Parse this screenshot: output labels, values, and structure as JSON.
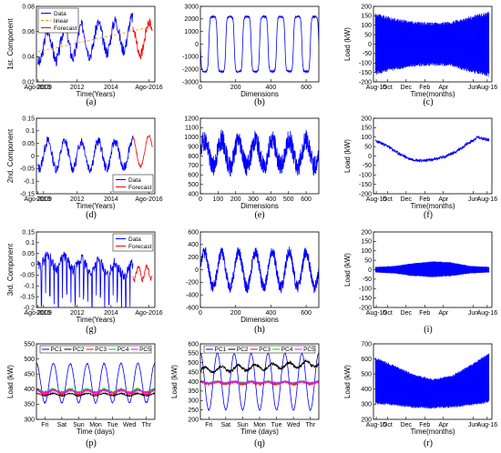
{
  "chart_data": [
    {
      "id": "a",
      "caption": "(a)",
      "type": "line",
      "xlabel": "Time(Years)",
      "ylabel": "1st. Component",
      "xlim": [
        2009.58,
        2016.6
      ],
      "ylim": [
        0.02,
        0.08
      ],
      "xticks": [
        {
          "v": 2009.67,
          "t": "Ago-2009"
        },
        {
          "v": 2010,
          "t": "2010"
        },
        {
          "v": 2012,
          "t": "2012"
        },
        {
          "v": 2014,
          "t": "2014"
        },
        {
          "v": 2016.25,
          "t": "Ago-2016"
        }
      ],
      "yticks": [
        0.02,
        0.04,
        0.06,
        0.08
      ],
      "legend": {
        "position": "top-left",
        "entries": [
          "Data",
          "linear",
          "Forecast"
        ]
      },
      "series": [
        {
          "name": "Data",
          "color": "#0000ff",
          "gen": "seasonal",
          "x0": 2009.67,
          "x1": 2015.3,
          "mid": 0.047,
          "trend": 0.012,
          "amp": 0.012,
          "period": 1,
          "noise": 0.005,
          "n": 260,
          "seed": 3
        },
        {
          "name": "linear",
          "color": "#ff8c00",
          "dash": "3,2",
          "x": [
            2009.67,
            2016.5
          ],
          "values": [
            0.044,
            0.064
          ]
        },
        {
          "name": "Forecast",
          "color": "#ff0000",
          "gen": "seasonal",
          "x0": 2015.3,
          "x1": 2016.45,
          "mid": 0.052,
          "trend": 0.004,
          "amp": 0.012,
          "period": 1,
          "noise": 0.004,
          "n": 50,
          "seed": 7
        }
      ]
    },
    {
      "id": "b",
      "caption": "(b)",
      "type": "line",
      "xlabel": "Dimensions",
      "ylabel": "",
      "xlim": [
        0,
        672
      ],
      "ylim": [
        -3000,
        3000
      ],
      "xticks": [
        {
          "v": 0,
          "t": "0"
        },
        {
          "v": 200,
          "t": "200"
        },
        {
          "v": 400,
          "t": "400"
        },
        {
          "v": 600,
          "t": "600"
        }
      ],
      "yticks": [
        -3000,
        -2000,
        -1000,
        0,
        1000,
        2000,
        3000
      ],
      "series": [
        {
          "color": "#0000ff",
          "gen": "squareish",
          "x0": 0,
          "x1": 672,
          "amp": 2200,
          "period": 96,
          "phase": 48,
          "noise": 80,
          "n": 672,
          "seed": 11
        }
      ]
    },
    {
      "id": "c",
      "caption": "(c)",
      "type": "line",
      "xlabel": "Time(months)",
      "ylabel": "Load (kW)",
      "xlim": [
        0,
        12.7
      ],
      "ylim": [
        -200,
        200
      ],
      "xticks": [
        {
          "v": 0.3,
          "t": "Aug-15"
        },
        {
          "v": 1.5,
          "t": "Oct"
        },
        {
          "v": 3.5,
          "t": "Dec"
        },
        {
          "v": 5.5,
          "t": "Feb"
        },
        {
          "v": 7.5,
          "t": "Apr"
        },
        {
          "v": 10.7,
          "t": "Jun"
        },
        {
          "v": 12.2,
          "t": "Aug-16"
        }
      ],
      "yticks": [
        -200,
        -150,
        -100,
        -50,
        0,
        50,
        100,
        150,
        200
      ],
      "series": [
        {
          "color": "#0000ff",
          "gen": "envelope",
          "x0": 0.2,
          "x1": 12.4,
          "envTop": [
            165,
            140,
            120,
            115,
            120,
            150,
            175
          ],
          "envBot": [
            -165,
            -140,
            -120,
            -115,
            -120,
            -150,
            -175
          ],
          "n": 700,
          "seed": 5
        }
      ]
    },
    {
      "id": "d",
      "caption": "(d)",
      "type": "line",
      "xlabel": "Time(Years)",
      "ylabel": "2nd. Component",
      "xlim": [
        2009.58,
        2016.6
      ],
      "ylim": [
        -0.15,
        0.15
      ],
      "xticks": [
        {
          "v": 2009.67,
          "t": "Ago-2009"
        },
        {
          "v": 2010,
          "t": "2010"
        },
        {
          "v": 2012,
          "t": "2012"
        },
        {
          "v": 2014,
          "t": "2014"
        },
        {
          "v": 2016.25,
          "t": "Ago-2016"
        }
      ],
      "yticks": [
        -0.15,
        -0.1,
        -0.05,
        0,
        0.05,
        0.1,
        0.15
      ],
      "legend": {
        "position": "bottom-right",
        "entries": [
          "Data",
          "Forecast"
        ]
      },
      "series": [
        {
          "name": "Data",
          "color": "#0000ff",
          "gen": "seasonal",
          "x0": 2009.67,
          "x1": 2015.3,
          "mid": 0.005,
          "trend": 0,
          "amp": 0.055,
          "period": 1,
          "noise": 0.02,
          "n": 260,
          "seed": 13
        },
        {
          "name": "Forecast",
          "color": "#ff0000",
          "gen": "seasonal",
          "x0": 2015.3,
          "x1": 2016.45,
          "mid": 0.02,
          "trend": 0,
          "amp": 0.06,
          "period": 1,
          "noise": 0.006,
          "n": 50,
          "seed": 17
        }
      ]
    },
    {
      "id": "e",
      "caption": "(e)",
      "type": "line",
      "xlabel": "Dimensions",
      "ylabel": "",
      "xlim": [
        0,
        672
      ],
      "ylim": [
        400,
        1200
      ],
      "xticks": [
        {
          "v": 0,
          "t": "0"
        },
        {
          "v": 100,
          "t": "100"
        },
        {
          "v": 200,
          "t": "200"
        },
        {
          "v": 300,
          "t": "300"
        },
        {
          "v": 400,
          "t": "400"
        },
        {
          "v": 500,
          "t": "500"
        },
        {
          "v": 600,
          "t": "600"
        }
      ],
      "yticks": [
        400,
        500,
        600,
        700,
        800,
        900,
        1000,
        1100,
        1200
      ],
      "series": [
        {
          "color": "#0000ff",
          "gen": "noisy",
          "x0": 0,
          "x1": 672,
          "mid": 830,
          "amp": 140,
          "period": 96,
          "noise": 110,
          "n": 672,
          "seed": 19
        }
      ]
    },
    {
      "id": "f",
      "caption": "(f)",
      "type": "line",
      "xlabel": "Time(months)",
      "ylabel": "Load (kW)",
      "xlim": [
        0,
        12.7
      ],
      "ylim": [
        -200,
        200
      ],
      "xticks": [
        {
          "v": 0.3,
          "t": "Aug-15"
        },
        {
          "v": 1.5,
          "t": "Oct"
        },
        {
          "v": 3.5,
          "t": "Dec"
        },
        {
          "v": 5.5,
          "t": "Feb"
        },
        {
          "v": 7.5,
          "t": "Apr"
        },
        {
          "v": 10.7,
          "t": "Jun"
        },
        {
          "v": 12.2,
          "t": "Aug-16"
        }
      ],
      "yticks": [
        -200,
        -150,
        -100,
        -50,
        0,
        50,
        100,
        150,
        200
      ],
      "series": [
        {
          "color": "#0000ff",
          "gen": "ucurve",
          "x0": 0.2,
          "x1": 12.4,
          "values": [
            80,
            55,
            15,
            -15,
            -25,
            -20,
            -5,
            20,
            60,
            100,
            85
          ],
          "noise": 8,
          "n": 500,
          "seed": 23
        }
      ]
    },
    {
      "id": "g",
      "caption": "(g)",
      "type": "line",
      "xlabel": "Time(Years)",
      "ylabel": "3rd. Component",
      "xlim": [
        2009.58,
        2016.6
      ],
      "ylim": [
        -0.2,
        0.15
      ],
      "xticks": [
        {
          "v": 2009.67,
          "t": "Ago-2009"
        },
        {
          "v": 2010,
          "t": "2010"
        },
        {
          "v": 2012,
          "t": "2012"
        },
        {
          "v": 2014,
          "t": "2014"
        },
        {
          "v": 2016.25,
          "t": "Ago-2016"
        }
      ],
      "yticks": [
        -0.2,
        -0.15,
        -0.1,
        -0.05,
        0,
        0.05,
        0.1,
        0.15
      ],
      "legend": {
        "position": "top-right",
        "entries": [
          "Data",
          "Forecast"
        ]
      },
      "series": [
        {
          "name": "Data",
          "color": "#0000ff",
          "gen": "spiky",
          "x0": 2009.67,
          "x1": 2015.3,
          "mid": 0.02,
          "trend": -0.05,
          "amp": 0.03,
          "period": 1,
          "noise": 0.025,
          "n": 260,
          "seed": 29
        },
        {
          "name": "Forecast",
          "color": "#ff0000",
          "gen": "seasonal",
          "x0": 2015.3,
          "x1": 2016.45,
          "mid": -0.04,
          "trend": 0,
          "amp": 0.03,
          "period": 0.5,
          "noise": 0.012,
          "n": 50,
          "seed": 31
        }
      ]
    },
    {
      "id": "h",
      "caption": "(h)",
      "type": "line",
      "xlabel": "Dimensions",
      "ylabel": "",
      "xlim": [
        0,
        672
      ],
      "ylim": [
        -600,
        600
      ],
      "xticks": [
        {
          "v": 0,
          "t": "0"
        },
        {
          "v": 200,
          "t": "200"
        },
        {
          "v": 400,
          "t": "400"
        },
        {
          "v": 600,
          "t": "600"
        }
      ],
      "yticks": [
        -600,
        -400,
        -200,
        0,
        200,
        400,
        600
      ],
      "series": [
        {
          "color": "#0000ff",
          "gen": "noisy",
          "x0": 0,
          "x1": 672,
          "mid": 0,
          "amp": 280,
          "period": 96,
          "noise": 100,
          "n": 672,
          "seed": 37
        }
      ]
    },
    {
      "id": "i",
      "caption": "(i)",
      "type": "line",
      "xlabel": "",
      "ylabel": "Load (kW)",
      "xlim": [
        0,
        12.7
      ],
      "ylim": [
        -200,
        200
      ],
      "xticks": [
        {
          "v": 0.3,
          "t": "Aug-15"
        },
        {
          "v": 1.5,
          "t": "Oct"
        },
        {
          "v": 3.5,
          "t": "Dec"
        },
        {
          "v": 5.5,
          "t": "Feb"
        },
        {
          "v": 7.5,
          "t": "Apr"
        },
        {
          "v": 10.7,
          "t": "Jun"
        },
        {
          "v": 12.2,
          "t": "Aug-16"
        }
      ],
      "yticks": [
        -200,
        -150,
        -100,
        -50,
        0,
        50,
        100,
        150,
        200
      ],
      "series": [
        {
          "color": "#0000ff",
          "gen": "envelope",
          "x0": 0.2,
          "x1": 12.4,
          "envTop": [
            15,
            20,
            35,
            45,
            40,
            20,
            15
          ],
          "envBot": [
            -15,
            -20,
            -35,
            -40,
            -35,
            -20,
            -15
          ],
          "n": 700,
          "seed": 41
        }
      ]
    },
    {
      "id": "p",
      "caption": "(p)",
      "type": "line",
      "xlabel": "Time (days)",
      "ylabel": "Load (kW)",
      "xlim": [
        0,
        7
      ],
      "ylim": [
        300,
        550
      ],
      "xticks": [
        {
          "v": 0.5,
          "t": "Fri"
        },
        {
          "v": 1.5,
          "t": "Sat"
        },
        {
          "v": 2.5,
          "t": "Sun"
        },
        {
          "v": 3.5,
          "t": "Mon"
        },
        {
          "v": 4.5,
          "t": "Tue"
        },
        {
          "v": 5.5,
          "t": "Wed"
        },
        {
          "v": 6.5,
          "t": "Thr"
        }
      ],
      "yticks": [
        300,
        350,
        400,
        450,
        500,
        550
      ],
      "legend": {
        "position": "top",
        "entries": [
          "PC1",
          "PC2",
          "PC3",
          "PC4",
          "PC5"
        ]
      },
      "series": [
        {
          "name": "PC1",
          "color": "#0000ff",
          "gen": "daily",
          "x0": 0,
          "x1": 7,
          "mid": 420,
          "amp": 65,
          "period": 1,
          "noise": 2,
          "n": 400,
          "seed": 43
        },
        {
          "name": "PC2",
          "color": "#000000",
          "gen": "daily",
          "x0": 0,
          "x1": 7,
          "mid": 382,
          "amp": 4,
          "period": 1,
          "noise": 2,
          "n": 400,
          "seed": 47
        },
        {
          "name": "PC3",
          "color": "#ff0000",
          "gen": "daily",
          "x0": 0,
          "x1": 7,
          "mid": 390,
          "amp": 8,
          "period": 1,
          "noise": 3,
          "n": 400,
          "seed": 53
        },
        {
          "name": "PC4",
          "color": "#00cc00",
          "gen": "daily",
          "x0": 0,
          "x1": 7,
          "mid": 395,
          "amp": 5,
          "period": 1,
          "noise": 3,
          "n": 400,
          "seed": 59
        },
        {
          "name": "PC5",
          "color": "#ff00ff",
          "gen": "daily",
          "x0": 0,
          "x1": 7,
          "mid": 392,
          "amp": 4,
          "period": 1,
          "noise": 3,
          "n": 400,
          "seed": 61
        }
      ]
    },
    {
      "id": "q",
      "caption": "(q)",
      "type": "line",
      "xlabel": "Time (days)",
      "ylabel": "Load (kW)",
      "xlim": [
        0,
        7
      ],
      "ylim": [
        200,
        600
      ],
      "xticks": [
        {
          "v": 0.5,
          "t": "Fri"
        },
        {
          "v": 1.5,
          "t": "Sat"
        },
        {
          "v": 2.5,
          "t": "Sun"
        },
        {
          "v": 3.5,
          "t": "Mon"
        },
        {
          "v": 4.5,
          "t": "Tue"
        },
        {
          "v": 5.5,
          "t": "Wed"
        },
        {
          "v": 6.5,
          "t": "Thr"
        }
      ],
      "yticks": [
        200,
        250,
        300,
        350,
        400,
        450,
        500,
        550,
        600
      ],
      "legend": {
        "position": "top",
        "entries": [
          "PC1",
          "PC2",
          "PC3",
          "PC4",
          "PC5"
        ]
      },
      "series": [
        {
          "name": "PC1",
          "color": "#0000ff",
          "gen": "daily",
          "x0": 0,
          "x1": 7,
          "mid": 400,
          "amp": 150,
          "period": 1,
          "noise": 3,
          "n": 400,
          "seed": 67
        },
        {
          "name": "PC2",
          "color": "#000000",
          "gen": "trend",
          "x0": 0,
          "x1": 7,
          "start": 460,
          "end": 495,
          "amp": 15,
          "period": 1,
          "noise": 8,
          "n": 400,
          "seed": 71
        },
        {
          "name": "PC3",
          "color": "#ff0000",
          "gen": "daily",
          "x0": 0,
          "x1": 7,
          "mid": 392,
          "amp": 6,
          "period": 1,
          "noise": 5,
          "n": 400,
          "seed": 73
        },
        {
          "name": "PC4",
          "color": "#00cc00",
          "gen": "daily",
          "x0": 0,
          "x1": 7,
          "mid": 397,
          "amp": 4,
          "period": 1,
          "noise": 4,
          "n": 400,
          "seed": 79
        },
        {
          "name": "PC5",
          "color": "#ff00ff",
          "gen": "daily",
          "x0": 0,
          "x1": 7,
          "mid": 395,
          "amp": 4,
          "period": 1,
          "noise": 4,
          "n": 400,
          "seed": 83
        }
      ]
    },
    {
      "id": "r",
      "caption": "(r)",
      "type": "line",
      "xlabel": "Time(months)",
      "ylabel": "Load (kW)",
      "xlim": [
        0,
        12.7
      ],
      "ylim": [
        200,
        700
      ],
      "xticks": [
        {
          "v": 0.3,
          "t": "Aug-15"
        },
        {
          "v": 1.5,
          "t": "Oct"
        },
        {
          "v": 3.5,
          "t": "Dec"
        },
        {
          "v": 5.5,
          "t": "Feb"
        },
        {
          "v": 7.5,
          "t": "Apr"
        },
        {
          "v": 10.7,
          "t": "Jun"
        },
        {
          "v": 12.2,
          "t": "Aug-16"
        }
      ],
      "yticks": [
        200,
        300,
        400,
        500,
        600,
        700
      ],
      "series": [
        {
          "color": "#0000ff",
          "gen": "envelope",
          "x0": 0.2,
          "x1": 12.4,
          "envTop": [
            610,
            560,
            500,
            470,
            490,
            560,
            640
          ],
          "envBot": [
            300,
            290,
            275,
            270,
            275,
            290,
            310
          ],
          "n": 700,
          "seed": 89
        }
      ]
    }
  ]
}
